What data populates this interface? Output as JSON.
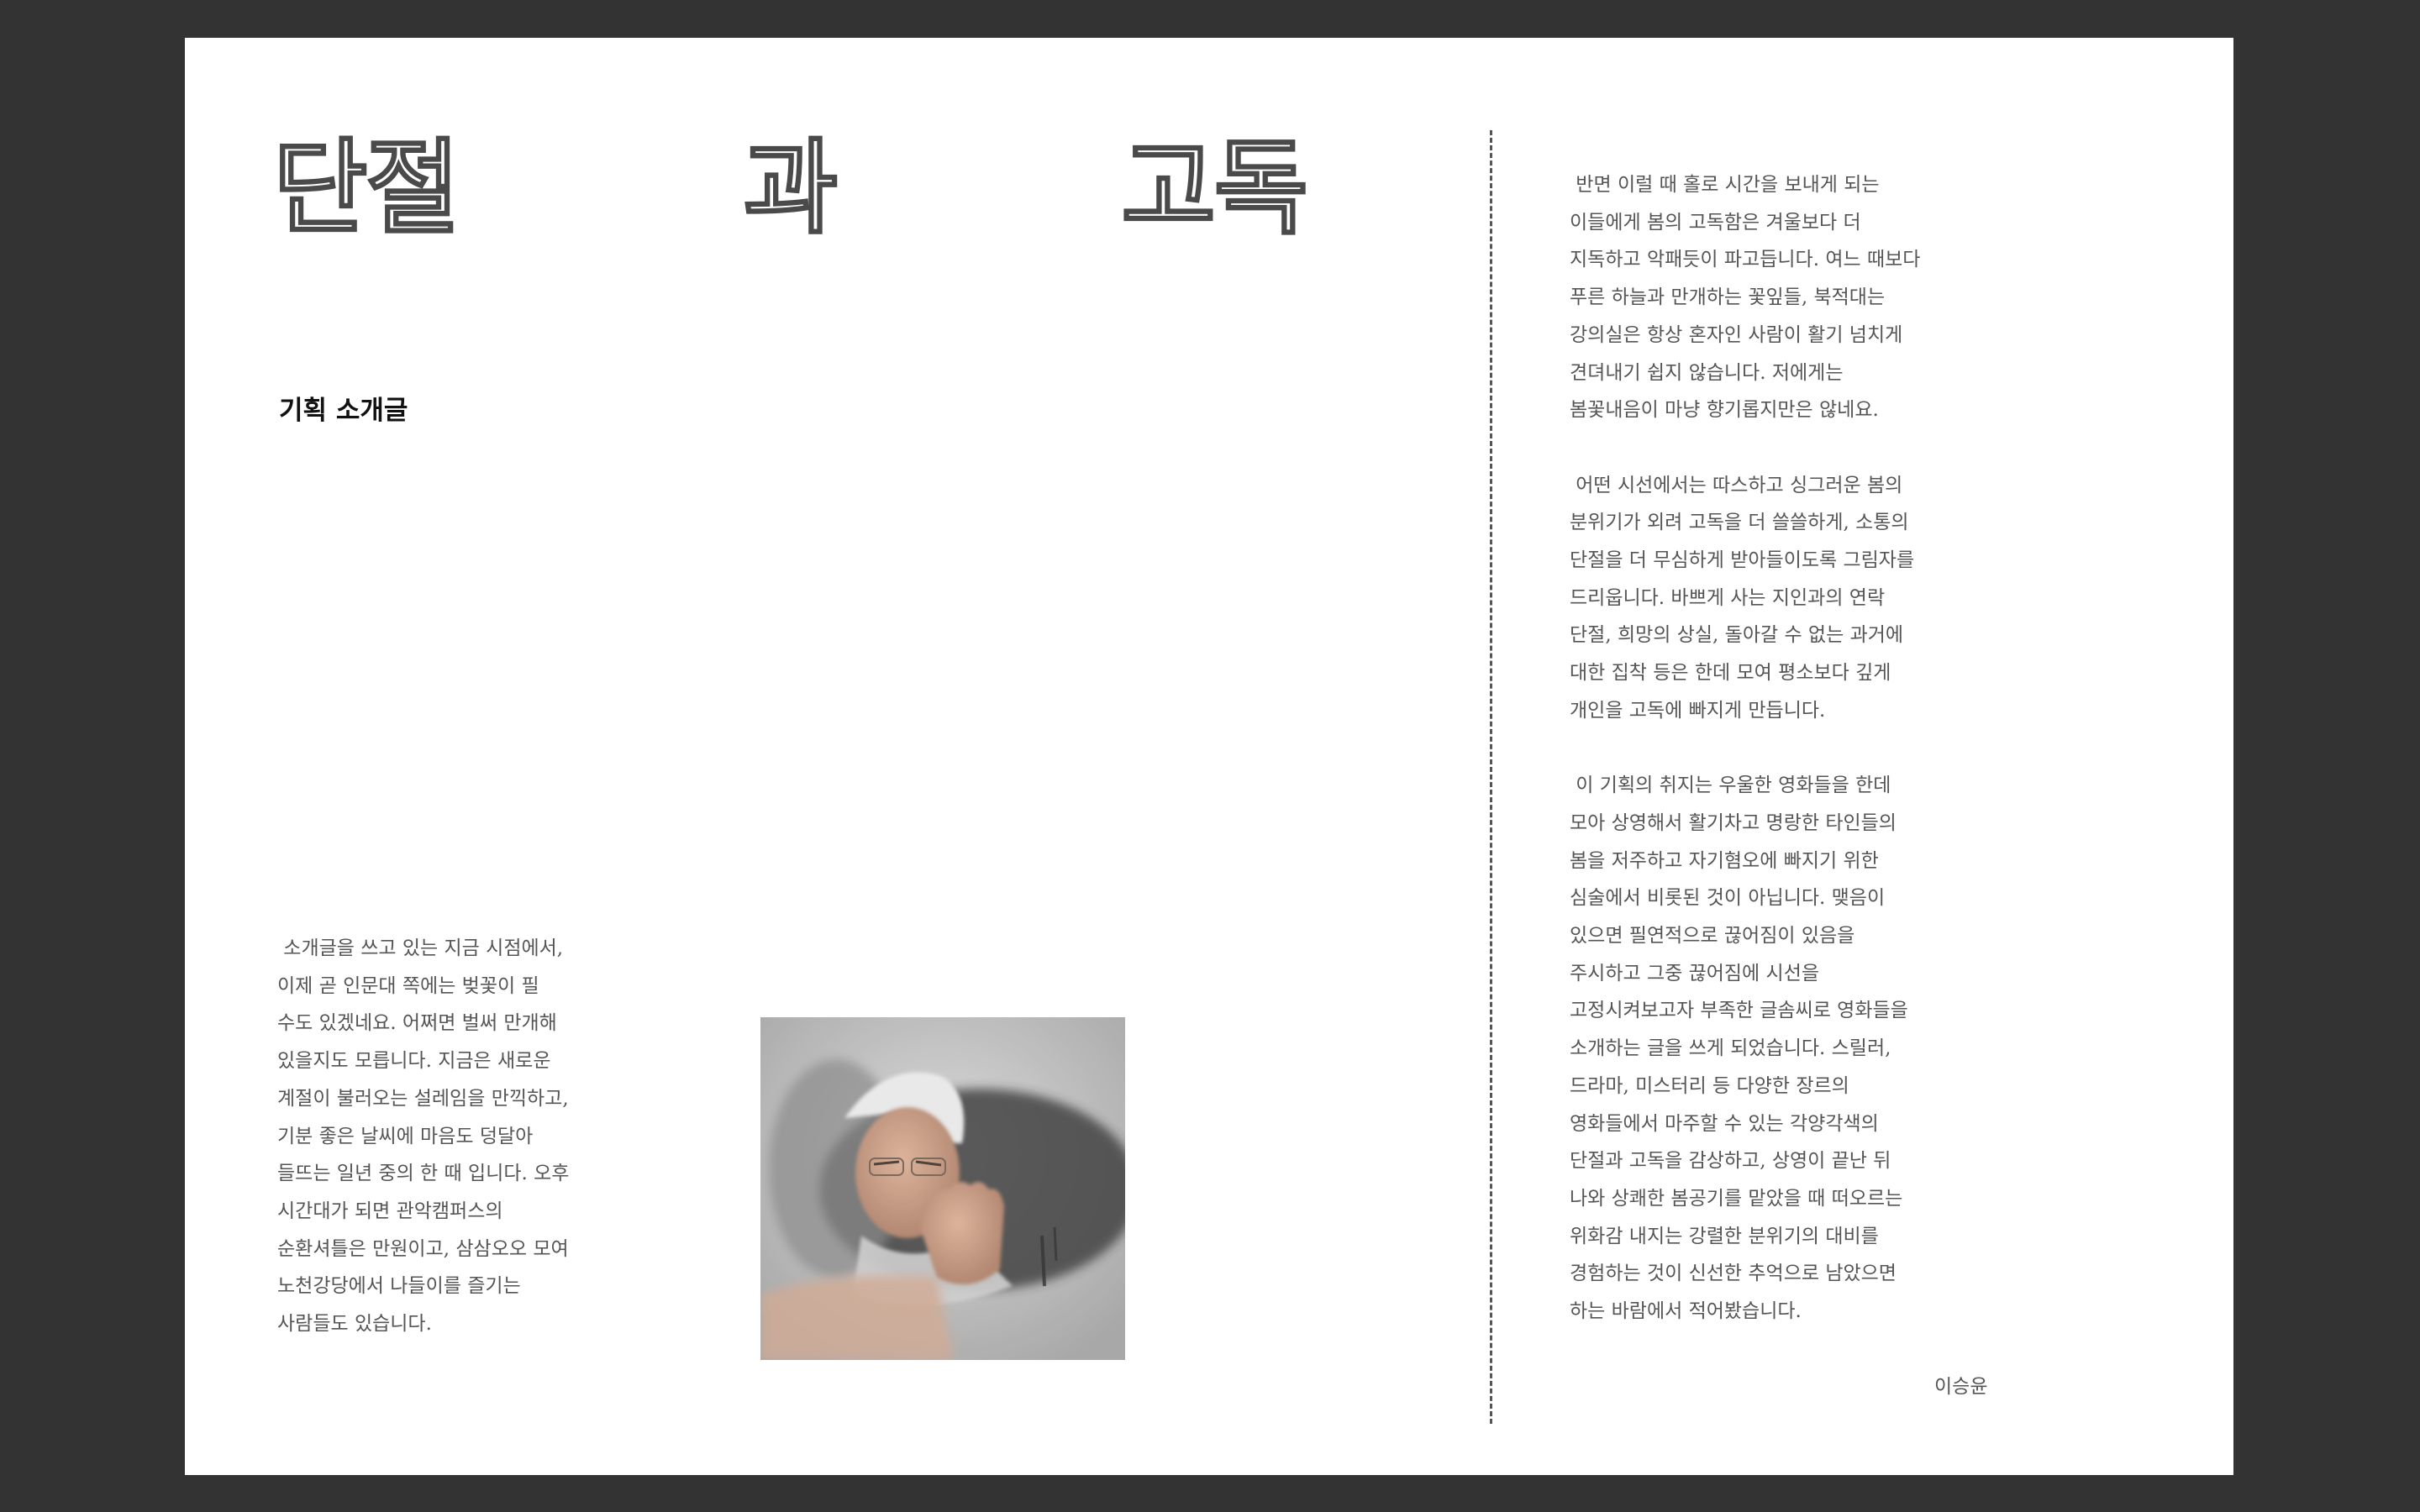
{
  "title": {
    "parts": [
      "단절",
      "과",
      "고독"
    ]
  },
  "section_heading": "기획 소개글",
  "left_column": {
    "lines": [
      " 소개글을 쓰고 있는 지금 시점에서,",
      "이제 곧 인문대 쪽에는 벚꽃이 필",
      "수도 있겠네요. 어쩌면 벌써 만개해",
      "있을지도 모릅니다. 지금은 새로운",
      "계절이 불러오는 설레임을 만끽하고,",
      "기분 좋은 날씨에 마음도 덩달아",
      "들뜨는 일년 중의 한 때 입니다. 오후",
      "시간대가 되면 관악캠퍼스의",
      "순환셔틀은 만원이고, 삼삼오오 모여",
      "노천강당에서 나들이를 즐기는",
      "사람들도 있습니다."
    ]
  },
  "right_column": {
    "paragraphs": [
      {
        "lines": [
          " 반면 이럴 때 홀로 시간을 보내게 되는",
          "이들에게 봄의 고독함은 겨울보다 더",
          "지독하고 악패듯이 파고듭니다. 여느 때보다",
          "푸른 하늘과 만개하는 꽃잎들, 북적대는",
          "강의실은 항상 혼자인 사람이 활기 넘치게",
          "견뎌내기 쉽지 않습니다. 저에게는",
          "봄꽃내음이 마냥 향기롭지만은 않네요."
        ]
      },
      {
        "lines": [
          " 어떤 시선에서는 따스하고 싱그러운 봄의",
          "분위기가 외려 고독을 더 쓸쓸하게, 소통의",
          "단절을 더 무심하게 받아들이도록 그림자를",
          "드리웁니다. 바쁘게 사는 지인과의 연락",
          "단절, 희망의 상실, 돌아갈 수 없는 과거에",
          "대한 집착 등은 한데 모여 평소보다 깊게",
          "개인을 고독에 빠지게 만듭니다."
        ]
      },
      {
        "lines": [
          " 이 기획의 취지는 우울한 영화들을 한데",
          "모아 상영해서 활기차고 명랑한 타인들의",
          "봄을 저주하고 자기혐오에 빠지기 위한",
          "심술에서 비롯된 것이 아닙니다. 맺음이",
          "있으면 필연적으로 끊어짐이 있음을",
          "주시하고 그중 끊어짐에 시선을",
          "고정시켜보고자 부족한 글솜씨로 영화들을",
          "소개하는 글을 쓰게 되었습니다. 스릴러,",
          "드라마, 미스터리 등 다양한 장르의",
          "영화들에서 마주할 수 있는 각양각색의",
          "단절과 고독을 감상하고, 상영이 끝난 뒤",
          "나와 상쾌한 봄공기를 맡았을 때 떠오르는",
          "위화감 내지는 강렬한 분위기의 대비를",
          "경험하는 것이 신선한 추억으로 남았으면",
          "하는 바람에서 적어봤습니다."
        ]
      }
    ]
  },
  "signature": "이승윤",
  "colors": {
    "background": "#333333",
    "page": "#ffffff",
    "body_text": "#555555",
    "heading": "#111111"
  }
}
